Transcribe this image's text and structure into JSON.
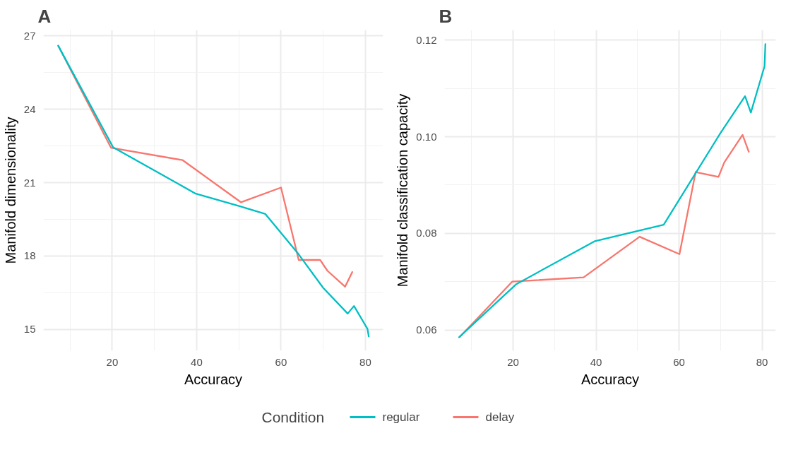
{
  "chart_data": [
    {
      "type": "line",
      "title": "A",
      "xlabel": "Accuracy",
      "ylabel": "Manifold dimensionality",
      "xlim": [
        3.7,
        84.2
      ],
      "ylim": [
        14.13,
        27.24
      ],
      "xticks": [
        20,
        40,
        60,
        80
      ],
      "yticks": [
        15,
        18,
        21,
        24,
        27
      ],
      "grid": true,
      "line_style": "solid",
      "legend": "bottom",
      "legend_title": "Condition",
      "series": [
        {
          "name": "regular",
          "color": "#00bfc4",
          "x": [
            7.2,
            20.2,
            39.8,
            50.2,
            56.3,
            64.2,
            70.0,
            75.8,
            77.3,
            80.5,
            80.8
          ],
          "values": [
            26.6,
            22.45,
            20.55,
            20.04,
            19.72,
            18.07,
            16.7,
            15.65,
            15.96,
            15.02,
            14.71
          ]
        },
        {
          "name": "delay",
          "color": "#f8766d",
          "x": [
            7.2,
            19.7,
            36.7,
            50.5,
            60.0,
            64.2,
            69.3,
            71.0,
            75.2,
            76.9
          ],
          "values": [
            26.6,
            22.43,
            21.92,
            20.2,
            20.8,
            17.84,
            17.84,
            17.4,
            16.75,
            17.35
          ]
        }
      ]
    },
    {
      "type": "line",
      "title": "B",
      "xlabel": "Accuracy",
      "ylabel": "Manifold classification capacity",
      "xlim": [
        3.5,
        83.3
      ],
      "ylim": [
        0.0557,
        0.1221
      ],
      "xticks": [
        20,
        40,
        60,
        80
      ],
      "yticks": [
        {
          "value": 0.06,
          "label": "0.06"
        },
        {
          "value": 0.08,
          "label": "0.08"
        },
        {
          "value": 0.1,
          "label": "0.10"
        },
        {
          "value": 0.12,
          "label": "0.12"
        }
      ],
      "grid": true,
      "line_style": "solid",
      "series": [
        {
          "color": "#00bfc4",
          "x": [
            7.0,
            20.8,
            39.75,
            56.3,
            70.0,
            75.9,
            77.3,
            80.6,
            80.8
          ],
          "values": [
            0.0585,
            0.0695,
            0.0784,
            0.0818,
            0.1008,
            0.1084,
            0.105,
            0.1146,
            0.1192
          ]
        },
        {
          "color": "#f8766d",
          "x": [
            7.2,
            19.8,
            37.0,
            50.5,
            60.1,
            64.0,
            69.5,
            70.9,
            75.3,
            76.8
          ],
          "values": [
            0.0586,
            0.07,
            0.0709,
            0.0793,
            0.0757,
            0.0927,
            0.0917,
            0.0947,
            0.1004,
            0.0969
          ]
        }
      ]
    }
  ]
}
